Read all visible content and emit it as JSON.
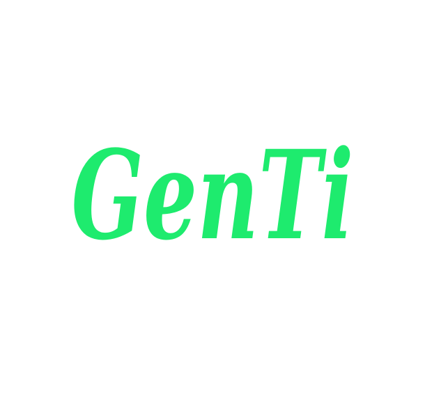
{
  "logo": {
    "text": "GenTi"
  }
}
